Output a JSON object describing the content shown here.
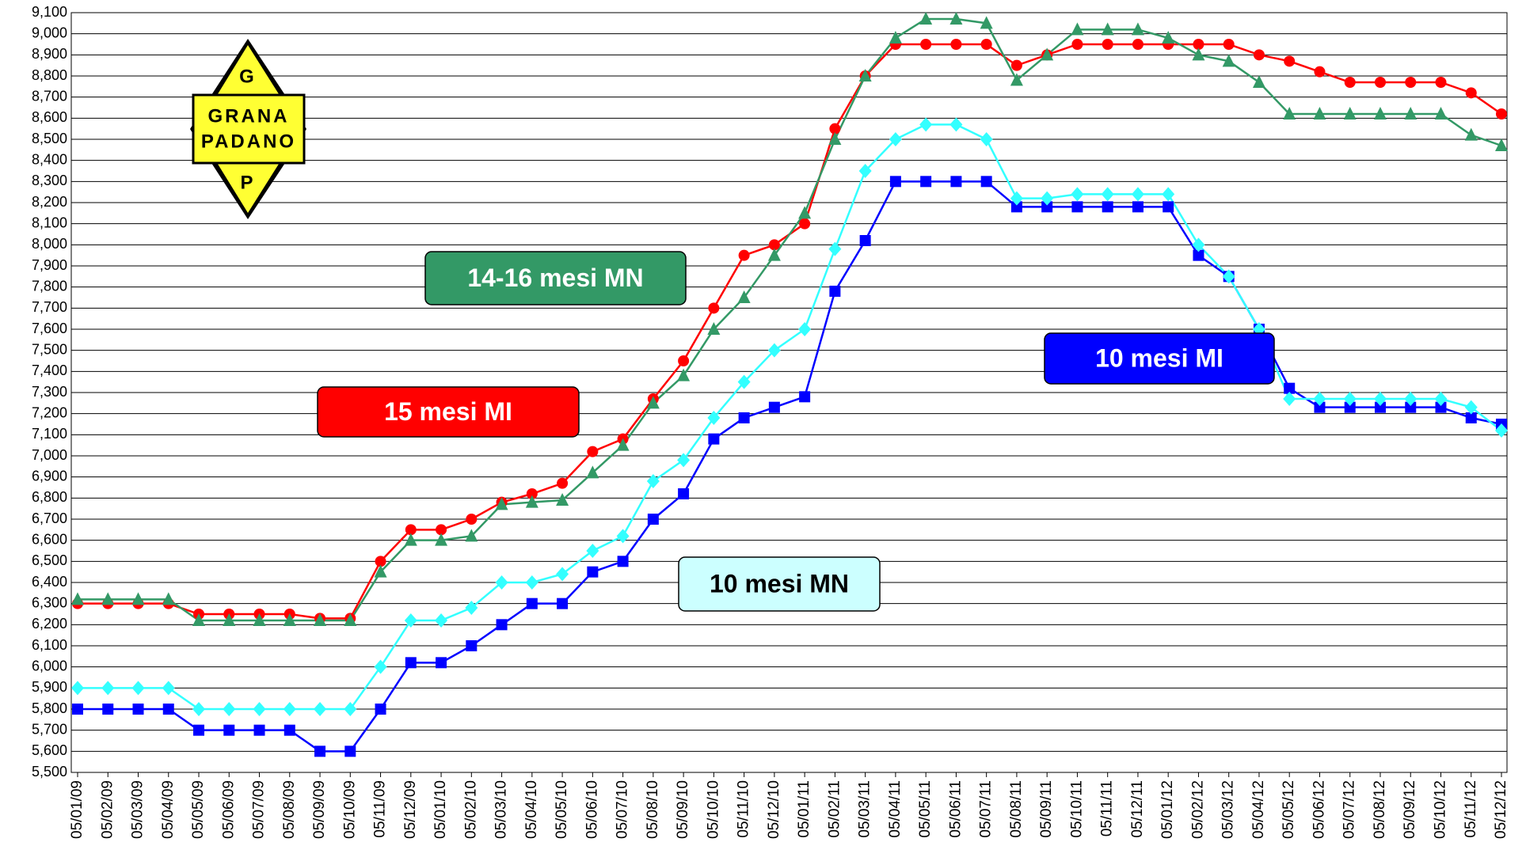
{
  "chart_data": {
    "type": "line",
    "logo": {
      "top": "G",
      "line1": "GRANA",
      "line2": "PADANO",
      "bottom": "P"
    },
    "categories": [
      "05/01/09",
      "05/02/09",
      "05/03/09",
      "05/04/09",
      "05/05/09",
      "05/06/09",
      "05/07/09",
      "05/08/09",
      "05/09/09",
      "05/10/09",
      "05/11/09",
      "05/12/09",
      "05/01/10",
      "05/02/10",
      "05/03/10",
      "05/04/10",
      "05/05/10",
      "05/06/10",
      "05/07/10",
      "05/08/10",
      "05/09/10",
      "05/10/10",
      "05/11/10",
      "05/12/10",
      "05/01/11",
      "05/02/11",
      "05/03/11",
      "05/04/11",
      "05/05/11",
      "05/06/11",
      "05/07/11",
      "05/08/11",
      "05/09/11",
      "05/10/11",
      "05/11/11",
      "05/12/11",
      "05/01/12",
      "05/02/12",
      "05/03/12",
      "05/04/12",
      "05/05/12",
      "05/06/12",
      "05/07/12",
      "05/08/12",
      "05/09/12",
      "05/10/12",
      "05/11/12",
      "05/12/12"
    ],
    "series": [
      {
        "name": "15 mesi MI",
        "color": "#ff0000",
        "marker": "circle",
        "values": [
          6300,
          6300,
          6300,
          6300,
          6250,
          6250,
          6250,
          6250,
          6230,
          6230,
          6500,
          6650,
          6650,
          6700,
          6780,
          6820,
          6870,
          7020,
          7080,
          7270,
          7450,
          7700,
          7950,
          8000,
          8100,
          8550,
          8800,
          8950,
          8950,
          8950,
          8950,
          8850,
          8900,
          8950,
          8950,
          8950,
          8950,
          8950,
          8950,
          8900,
          8870,
          8820,
          8770,
          8770,
          8770,
          8770,
          8720,
          8620
        ]
      },
      {
        "name": "14-16 mesi MN",
        "color": "#339966",
        "marker": "triangle",
        "values": [
          6320,
          6320,
          6320,
          6320,
          6220,
          6220,
          6220,
          6220,
          6220,
          6220,
          6450,
          6600,
          6600,
          6620,
          6770,
          6780,
          6790,
          6920,
          7050,
          7250,
          7380,
          7600,
          7750,
          7950,
          8150,
          8500,
          8800,
          8980,
          9070,
          9070,
          9050,
          8780,
          8900,
          9020,
          9020,
          9020,
          8980,
          8900,
          8870,
          8770,
          8620,
          8620,
          8620,
          8620,
          8620,
          8620,
          8520,
          8470
        ]
      },
      {
        "name": "10 mesi MI",
        "color": "#0000ff",
        "marker": "square",
        "values": [
          5800,
          5800,
          5800,
          5800,
          5700,
          5700,
          5700,
          5700,
          5600,
          5600,
          5800,
          6020,
          6020,
          6100,
          6200,
          6300,
          6300,
          6450,
          6500,
          6700,
          6820,
          7080,
          7180,
          7230,
          7280,
          7780,
          8020,
          8300,
          8300,
          8300,
          8300,
          8180,
          8180,
          8180,
          8180,
          8180,
          8180,
          7950,
          7850,
          7600,
          7320,
          7230,
          7230,
          7230,
          7230,
          7230,
          7180,
          7150
        ]
      },
      {
        "name": "10 mesi MN",
        "color": "#33ffff",
        "marker": "diamond",
        "values": [
          5900,
          5900,
          5900,
          5900,
          5800,
          5800,
          5800,
          5800,
          5800,
          5800,
          6000,
          6220,
          6220,
          6280,
          6400,
          6400,
          6440,
          6550,
          6620,
          6880,
          6980,
          7180,
          7350,
          7500,
          7600,
          7980,
          8350,
          8500,
          8570,
          8570,
          8500,
          8220,
          8220,
          8240,
          8240,
          8240,
          8240,
          8000,
          7850,
          7600,
          7270,
          7270,
          7270,
          7270,
          7270,
          7270,
          7230,
          7120
        ]
      }
    ],
    "ylim": [
      5500,
      9100
    ],
    "yticks": [
      {
        "value": 5500,
        "label": "5,500"
      },
      {
        "value": 5600,
        "label": "5,600"
      },
      {
        "value": 5700,
        "label": "5,700"
      },
      {
        "value": 5800,
        "label": "5,800"
      },
      {
        "value": 5900,
        "label": "5,900"
      },
      {
        "value": 6000,
        "label": "6,000"
      },
      {
        "value": 6100,
        "label": "6,100"
      },
      {
        "value": 6200,
        "label": "6,200"
      },
      {
        "value": 6300,
        "label": "6,300"
      },
      {
        "value": 6400,
        "label": "6,400"
      },
      {
        "value": 6500,
        "label": "6,500"
      },
      {
        "value": 6600,
        "label": "6,600"
      },
      {
        "value": 6700,
        "label": "6,700"
      },
      {
        "value": 6800,
        "label": "6,800"
      },
      {
        "value": 6900,
        "label": "6,900"
      },
      {
        "value": 7000,
        "label": "7,000"
      },
      {
        "value": 7100,
        "label": "7,100"
      },
      {
        "value": 7200,
        "label": "7,200"
      },
      {
        "value": 7300,
        "label": "7,300"
      },
      {
        "value": 7400,
        "label": "7,400"
      },
      {
        "value": 7500,
        "label": "7,500"
      },
      {
        "value": 7600,
        "label": "7,600"
      },
      {
        "value": 7700,
        "label": "7,700"
      },
      {
        "value": 7800,
        "label": "7,800"
      },
      {
        "value": 7900,
        "label": "7,900"
      },
      {
        "value": 8000,
        "label": "8,000"
      },
      {
        "value": 8100,
        "label": "8,100"
      },
      {
        "value": 8200,
        "label": "8,200"
      },
      {
        "value": 8300,
        "label": "8,300"
      },
      {
        "value": 8400,
        "label": "8,400"
      },
      {
        "value": 8500,
        "label": "8,500"
      },
      {
        "value": 8600,
        "label": "8,600"
      },
      {
        "value": 8700,
        "label": "8,700"
      },
      {
        "value": 8800,
        "label": "8,800"
      },
      {
        "value": 8900,
        "label": "8,900"
      },
      {
        "value": 9000,
        "label": "9,000"
      },
      {
        "value": 9100,
        "label": "9,100"
      }
    ],
    "grid": true
  }
}
